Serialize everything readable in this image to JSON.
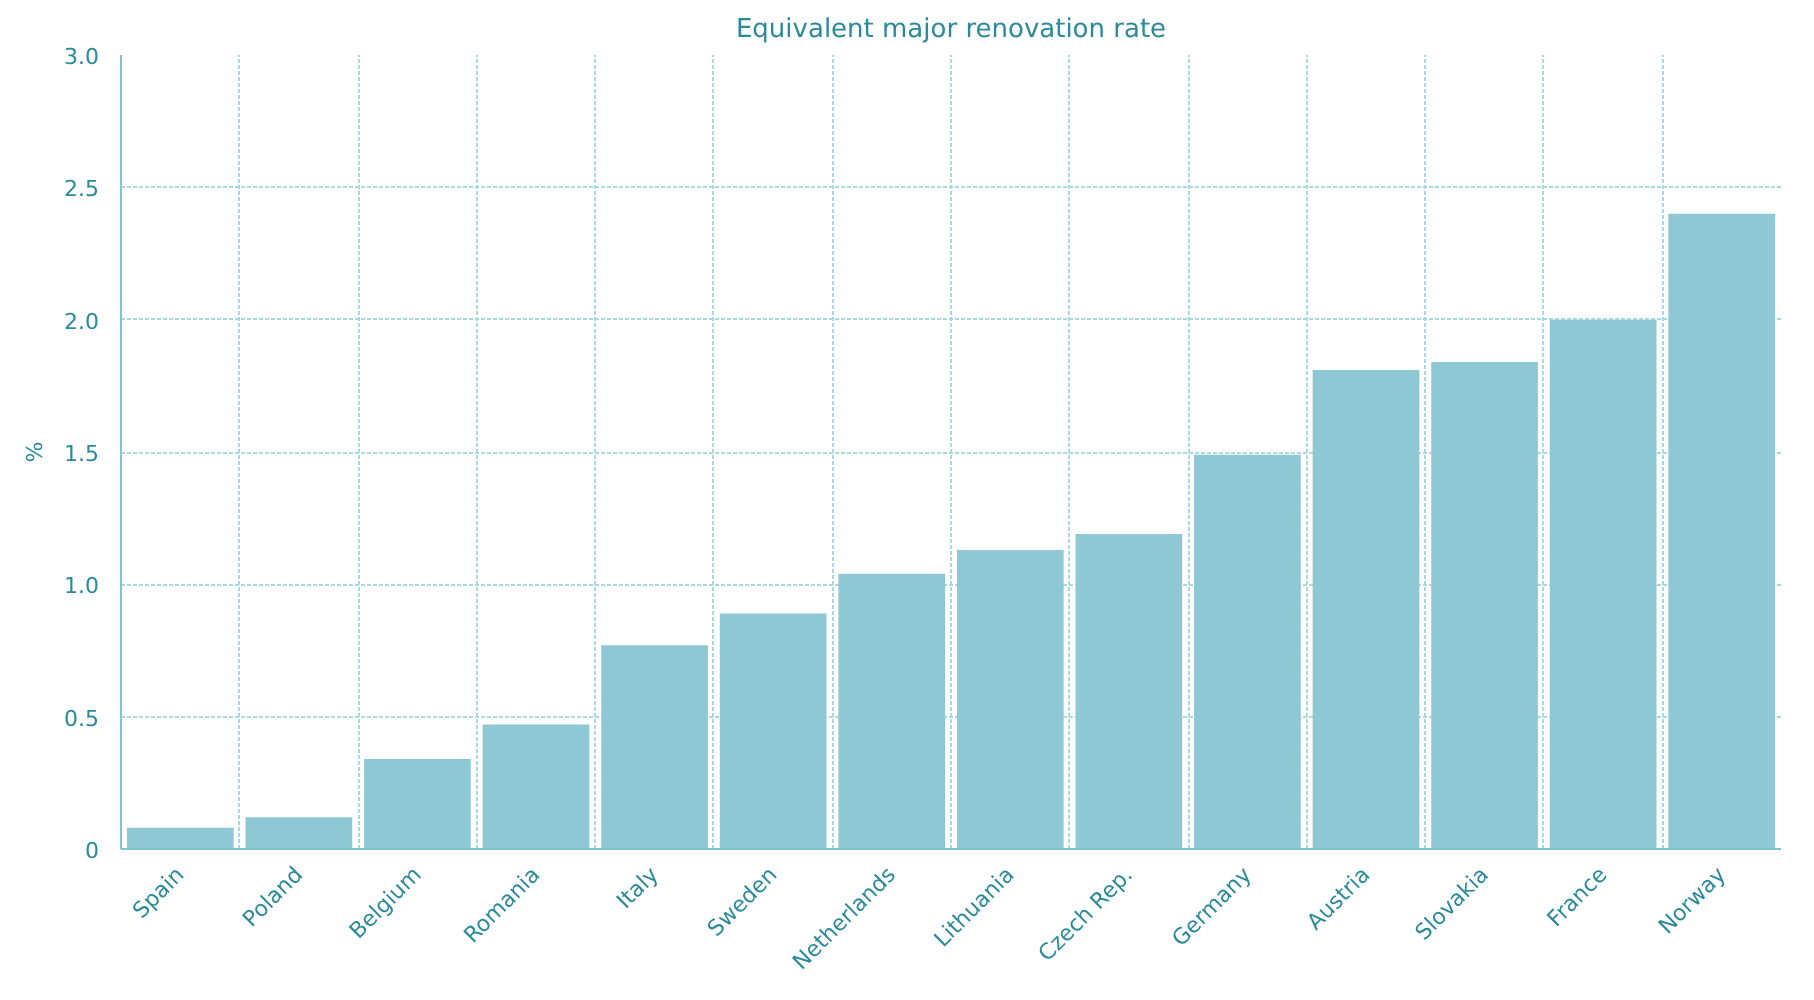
{
  "chart_data": {
    "type": "bar",
    "title": "Equivalent major renovation rate",
    "ylabel": "%",
    "categories": [
      "Spain",
      "Poland",
      "Belgium",
      "Romania",
      "Italy",
      "Sweden",
      "Netherlands",
      "Lithuania",
      "Czech Rep.",
      "Germany",
      "Austria",
      "Slovakia",
      "France",
      "Norway"
    ],
    "values": [
      0.08,
      0.12,
      0.34,
      0.47,
      0.77,
      0.89,
      1.04,
      1.13,
      1.19,
      1.49,
      1.81,
      1.84,
      2.0,
      2.4
    ],
    "color": "#8ec8d4",
    "ylim": [
      0,
      3.0
    ],
    "yticks": [
      {
        "value": 0,
        "label": "0"
      },
      {
        "value": 0.5,
        "label": "0.5"
      },
      {
        "value": 1.0,
        "label": "1.0"
      },
      {
        "value": 1.5,
        "label": "1.5"
      },
      {
        "value": 2.0,
        "label": "2.0"
      },
      {
        "value": 2.5,
        "label": "2.5"
      },
      {
        "value": 3.0,
        "label": "3.0"
      }
    ],
    "grid": true
  }
}
